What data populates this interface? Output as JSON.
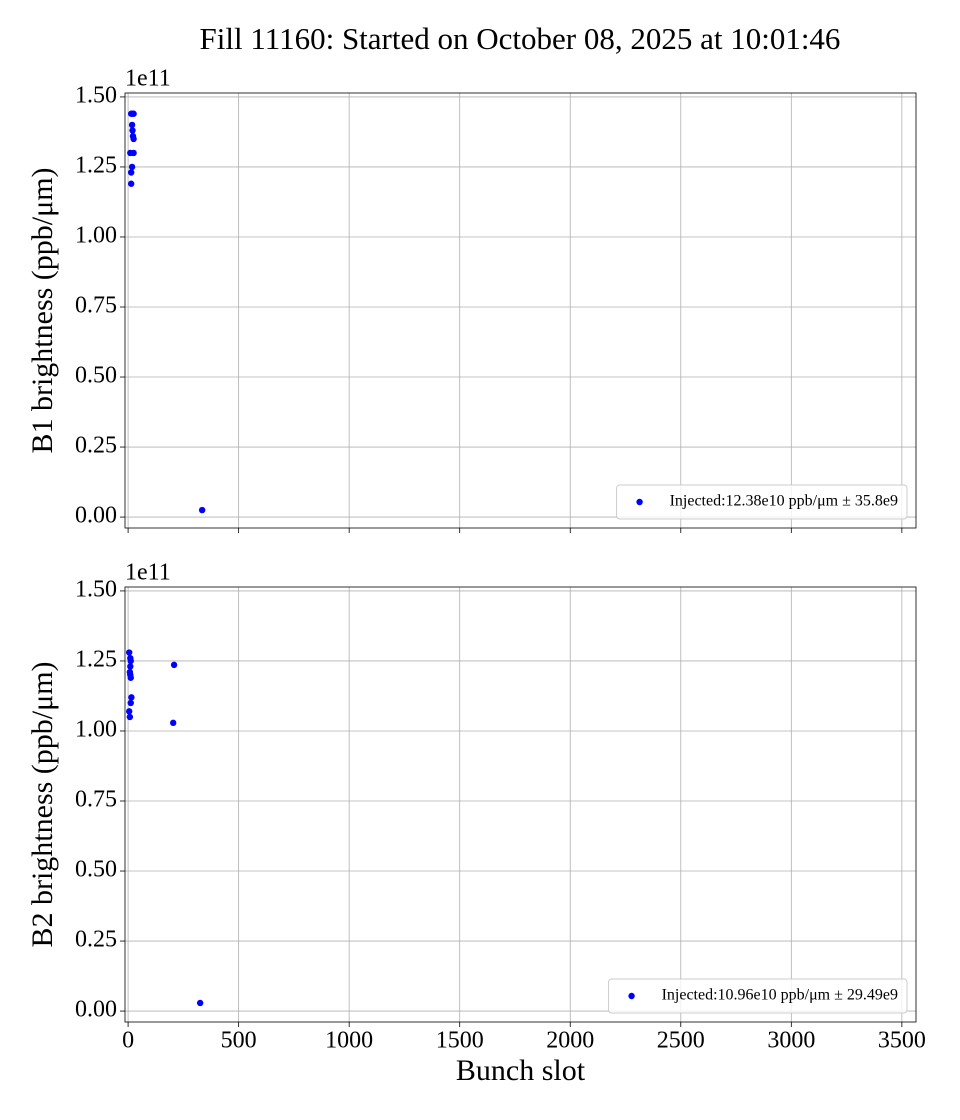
{
  "title": "Fill 11160: Started on October 08, 2025 at 10:01:46",
  "chart_data": [
    {
      "type": "scatter",
      "ylabel": "B1 brightness (ppb/μm)",
      "y_offset_label": "1e11",
      "series": [
        {
          "name": "Injected:12.38e10 ppb/μm ± 35.8e9",
          "color": "#0000ff",
          "x": [
            14,
            20,
            25,
            18,
            20,
            22,
            25,
            10,
            25,
            18,
            14,
            14,
            335
          ],
          "values": [
            1.44,
            1.44,
            1.44,
            1.4,
            1.38,
            1.36,
            1.35,
            1.3,
            1.3,
            1.25,
            1.23,
            1.19,
            0.025
          ]
        }
      ],
      "xlim": [
        -14,
        3564
      ],
      "xticks": [
        0,
        500,
        1000,
        1500,
        2000,
        2500,
        3000,
        3500
      ],
      "show_xticklabels": false,
      "ylim": [
        -0.039,
        1.514
      ],
      "yticks": [
        {
          "value": 0,
          "label": "0.00"
        },
        0.25,
        {
          "value": 0.5,
          "label": "0.50"
        },
        0.75,
        {
          "value": 1,
          "label": "1.00"
        },
        1.25,
        {
          "value": 1.5,
          "label": "1.50"
        }
      ],
      "grid": true,
      "legend": "lower right"
    },
    {
      "type": "scatter",
      "ylabel": "B2 brightness (ppb/μm)",
      "y_offset_label": "1e11",
      "xlabel": "Bunch slot",
      "series": [
        {
          "name": "Injected:10.96e10 ppb/μm ± 29.49e9",
          "color": "#0000ff",
          "x": [
            5,
            10,
            12,
            10,
            8,
            10,
            12,
            15,
            12,
            5,
            8,
            208,
            204,
            326
          ],
          "values": [
            1.28,
            1.26,
            1.25,
            1.23,
            1.21,
            1.2,
            1.19,
            1.12,
            1.1,
            1.07,
            1.05,
            1.236,
            1.029,
            0.029
          ]
        }
      ],
      "xlim": [
        -14,
        3564
      ],
      "xticks": [
        0,
        500,
        1000,
        1500,
        2000,
        2500,
        3000,
        3500
      ],
      "show_xticklabels": true,
      "ylim": [
        -0.039,
        1.514
      ],
      "yticks": [
        {
          "value": 0,
          "label": "0.00"
        },
        0.25,
        {
          "value": 0.5,
          "label": "0.50"
        },
        0.75,
        {
          "value": 1,
          "label": "1.00"
        },
        1.25,
        {
          "value": 1.5,
          "label": "1.50"
        }
      ],
      "grid": true,
      "legend": "lower right"
    }
  ]
}
